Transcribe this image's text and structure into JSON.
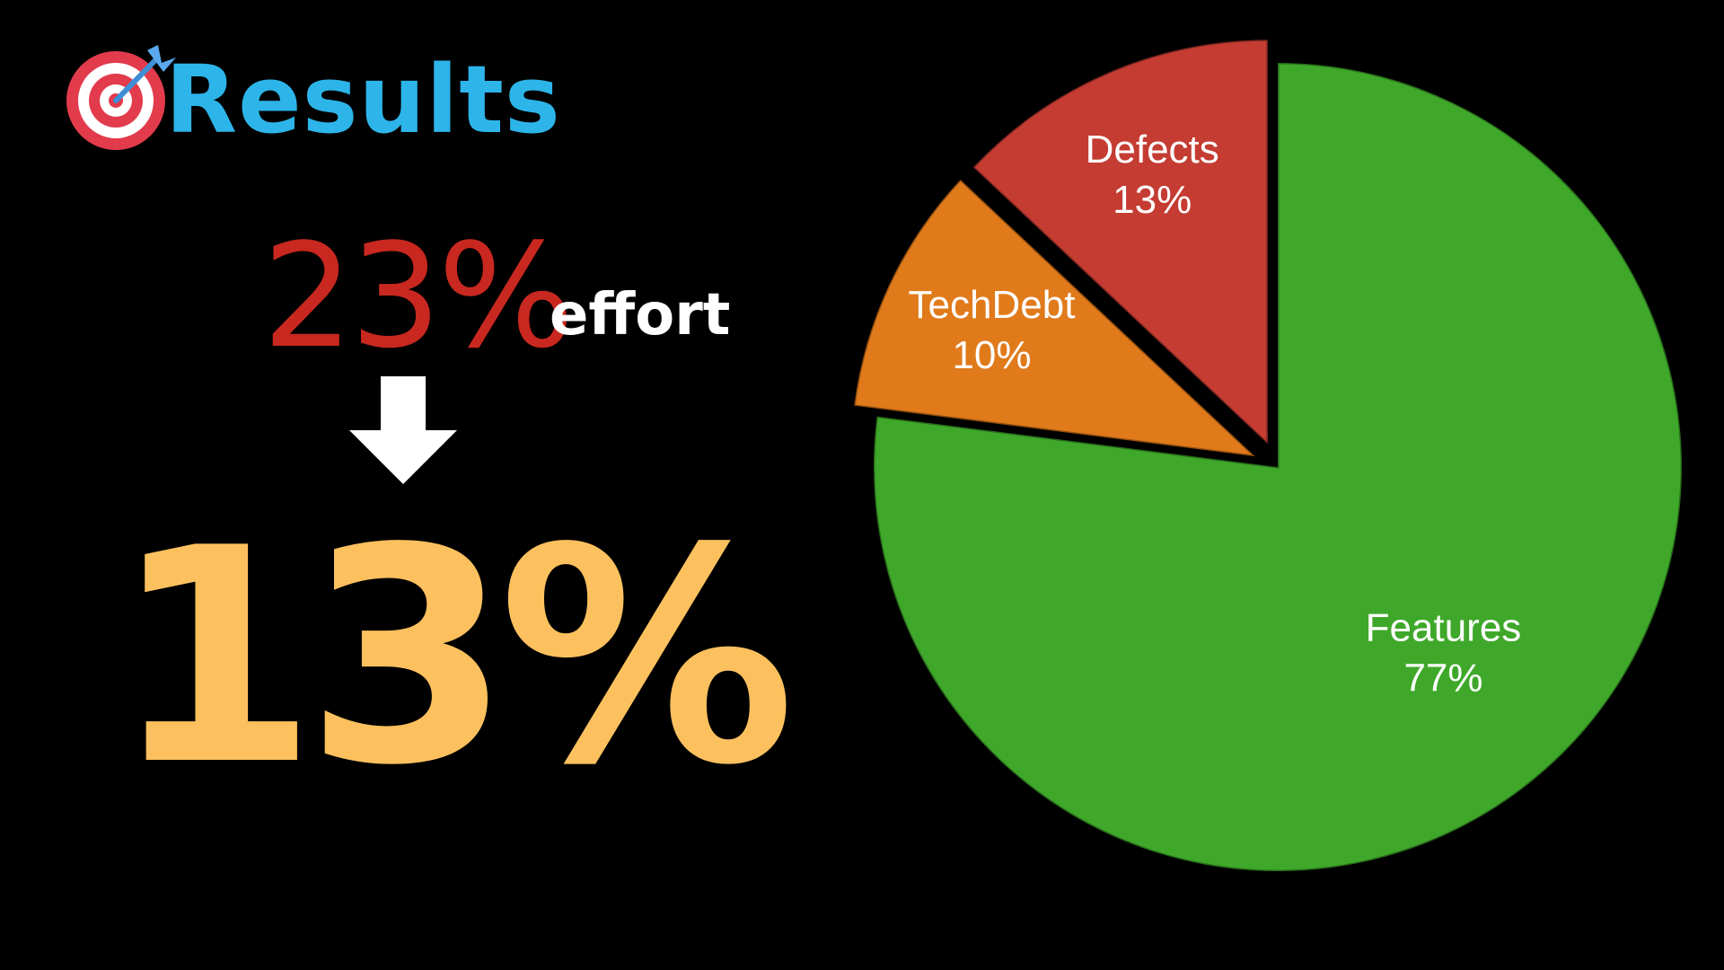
{
  "header": {
    "title": "Results",
    "icon": "target-dart-icon"
  },
  "summary": {
    "before_value": "23%",
    "before_unit": "effort",
    "arrow_icon": "arrow-down-icon",
    "after_value": "13%"
  },
  "colors": {
    "title": "#2db5e9",
    "before": "#c8281f",
    "after": "#fcc15e"
  },
  "chart_data": {
    "type": "pie",
    "categories": [
      "Features",
      "TechDebt",
      "Defects"
    ],
    "values": [
      77,
      10,
      13
    ],
    "labels": [
      "77%",
      "10%",
      "13%"
    ],
    "colors": [
      "#3fa82a",
      "#e07a1a",
      "#c43c32"
    ],
    "exploded": [
      "TechDebt",
      "Defects"
    ],
    "legend": "none"
  }
}
